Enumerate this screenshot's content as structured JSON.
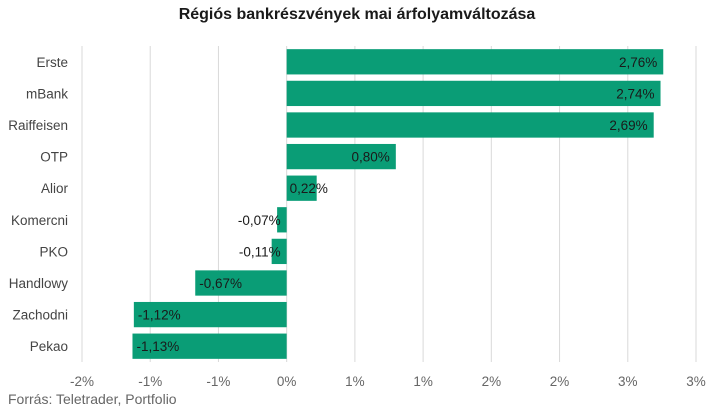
{
  "chart_data": {
    "type": "bar",
    "orientation": "horizontal",
    "title": "Régiós bankrészvények mai árfolyamváltozása",
    "source": "Forrás: Teletrader, Portfolio",
    "categories": [
      "Erste",
      "mBank",
      "Raiffeisen",
      "OTP",
      "Alior",
      "Komercni",
      "PKO",
      "Handlowy",
      "Zachodni",
      "Pekao"
    ],
    "values": [
      2.76,
      2.74,
      2.69,
      0.8,
      0.22,
      -0.07,
      -0.11,
      -0.67,
      -1.12,
      -1.13
    ],
    "value_labels": [
      "2,76%",
      "2,74%",
      "2,69%",
      "0,80%",
      "0,22%",
      "-0,07%",
      "-0,11%",
      "-0,67%",
      "-1,12%",
      "-1,13%"
    ],
    "xlim": [
      -1.5,
      3.0
    ],
    "x_ticks": [
      -1.5,
      -1.0,
      -0.5,
      0,
      0.5,
      1.0,
      1.5,
      2.0,
      2.5,
      3.0
    ],
    "x_tick_labels": [
      "-2%",
      "-1%",
      "-1%",
      "0%",
      "1%",
      "1%",
      "2%",
      "2%",
      "3%",
      "3%"
    ],
    "bar_color": "#0a9d76",
    "grid": true,
    "legend": "none"
  }
}
